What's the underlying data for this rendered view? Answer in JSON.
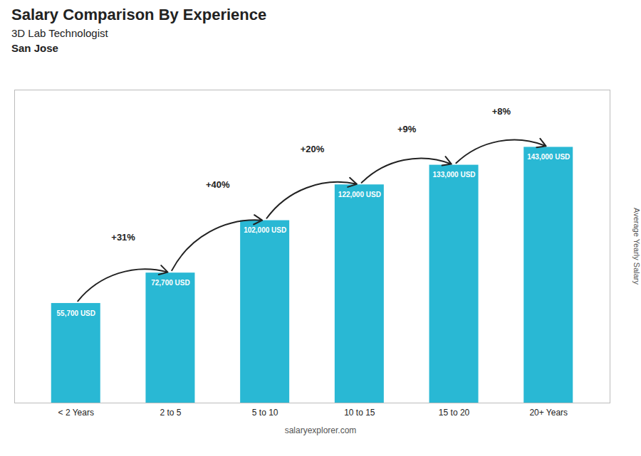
{
  "chart_data": {
    "type": "bar",
    "title": "Salary Comparison By Experience",
    "subtitle": "3D Lab Technologist",
    "caption": "salaryexplorer.com",
    "ylabel": "Average Yearly Salary",
    "categories": [
      "< 2 Years",
      "2 to 5",
      "5 to 10",
      "10 to 15",
      "15 to 20",
      "20+ Years"
    ],
    "values": [
      55700,
      72700,
      102000,
      122000,
      133000,
      143000
    ],
    "value_labels": [
      "55,700 USD",
      "72,700 USD",
      "102,000 USD",
      "122,000 USD",
      "133,000 USD",
      "143,000 USD"
    ],
    "data_labels": true,
    "color": "#29b8d4",
    "ylim": [
      0,
      175000
    ],
    "tick_labels": "x",
    "annotations": [
      {
        "text": "San Jose"
      },
      {
        "text": "+31%",
        "from": "< 2 Years",
        "to": "2 to 5"
      },
      {
        "text": "+40%",
        "from": "2 to 5",
        "to": "5 to 10"
      },
      {
        "text": "+20%",
        "from": "5 to 10",
        "to": "10 to 15"
      },
      {
        "text": "+9%",
        "from": "10 to 15",
        "to": "15 to 20"
      },
      {
        "text": "+8%",
        "from": "15 to 20",
        "to": "20+ Years"
      }
    ]
  }
}
